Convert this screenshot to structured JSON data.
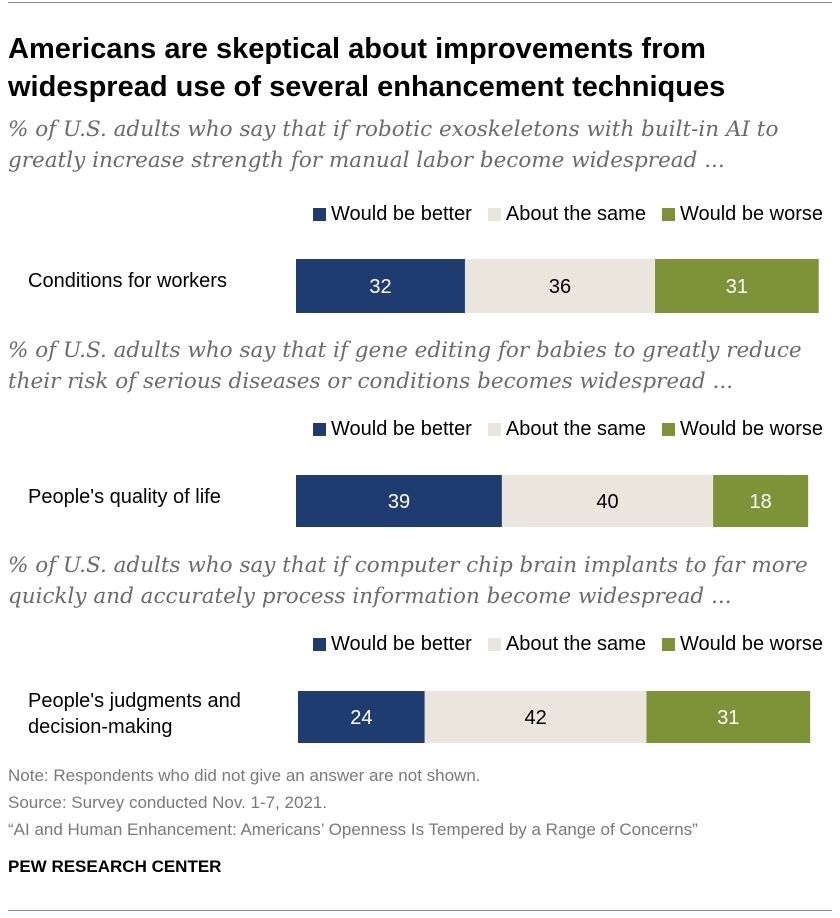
{
  "title_line1": "Americans are skeptical about improvements from",
  "title_line2": "widespread use of several enhancement techniques",
  "legend": {
    "better": "Would be better",
    "same": "About the same",
    "worse": "Would be worse"
  },
  "colors": {
    "better": "#1f3c70",
    "same": "#eae6de",
    "worse": "#7e9337",
    "better_text": "#ffffff",
    "same_text": "#000000",
    "worse_text": "#ffffff"
  },
  "chart_data": [
    {
      "type": "bar",
      "orientation": "horizontal-stacked",
      "subtitle_line1": "% of U.S. adults who say that if robotic exoskeletons with built-in AI to",
      "subtitle_line2": "greatly increase strength for manual labor become widespread ...",
      "categories": [
        "Conditions for workers"
      ],
      "series": [
        {
          "name": "Would be better",
          "values": [
            32
          ]
        },
        {
          "name": "About the same",
          "values": [
            36
          ]
        },
        {
          "name": "Would be worse",
          "values": [
            31
          ]
        }
      ]
    },
    {
      "type": "bar",
      "orientation": "horizontal-stacked",
      "subtitle_line1": "% of U.S. adults who say that if gene editing for babies to greatly reduce",
      "subtitle_line2": "their risk of serious diseases or conditions becomes widespread ...",
      "categories": [
        "People's quality of life"
      ],
      "series": [
        {
          "name": "Would be better",
          "values": [
            39
          ]
        },
        {
          "name": "About the same",
          "values": [
            40
          ]
        },
        {
          "name": "Would be worse",
          "values": [
            18
          ]
        }
      ]
    },
    {
      "type": "bar",
      "orientation": "horizontal-stacked",
      "subtitle_line1": "% of U.S. adults who say that if computer chip brain implants to far more",
      "subtitle_line2": "quickly and accurately process information become widespread ...",
      "categories": [
        "People's judgments and decision-making"
      ],
      "category_lines": [
        [
          "People's judgments and",
          "decision-making"
        ]
      ],
      "series": [
        {
          "name": "Would be better",
          "values": [
            24
          ]
        },
        {
          "name": "About the same",
          "values": [
            42
          ]
        },
        {
          "name": "Would be worse",
          "values": [
            31
          ]
        }
      ]
    }
  ],
  "notes": {
    "note": "Note: Respondents who did not give an answer are not shown.",
    "source": "Source: Survey conducted Nov. 1-7, 2021.",
    "report": "“AI and Human Enhancement: Americans’ Openness Is Tempered by a Range of Concerns”"
  },
  "brand": "PEW RESEARCH CENTER"
}
